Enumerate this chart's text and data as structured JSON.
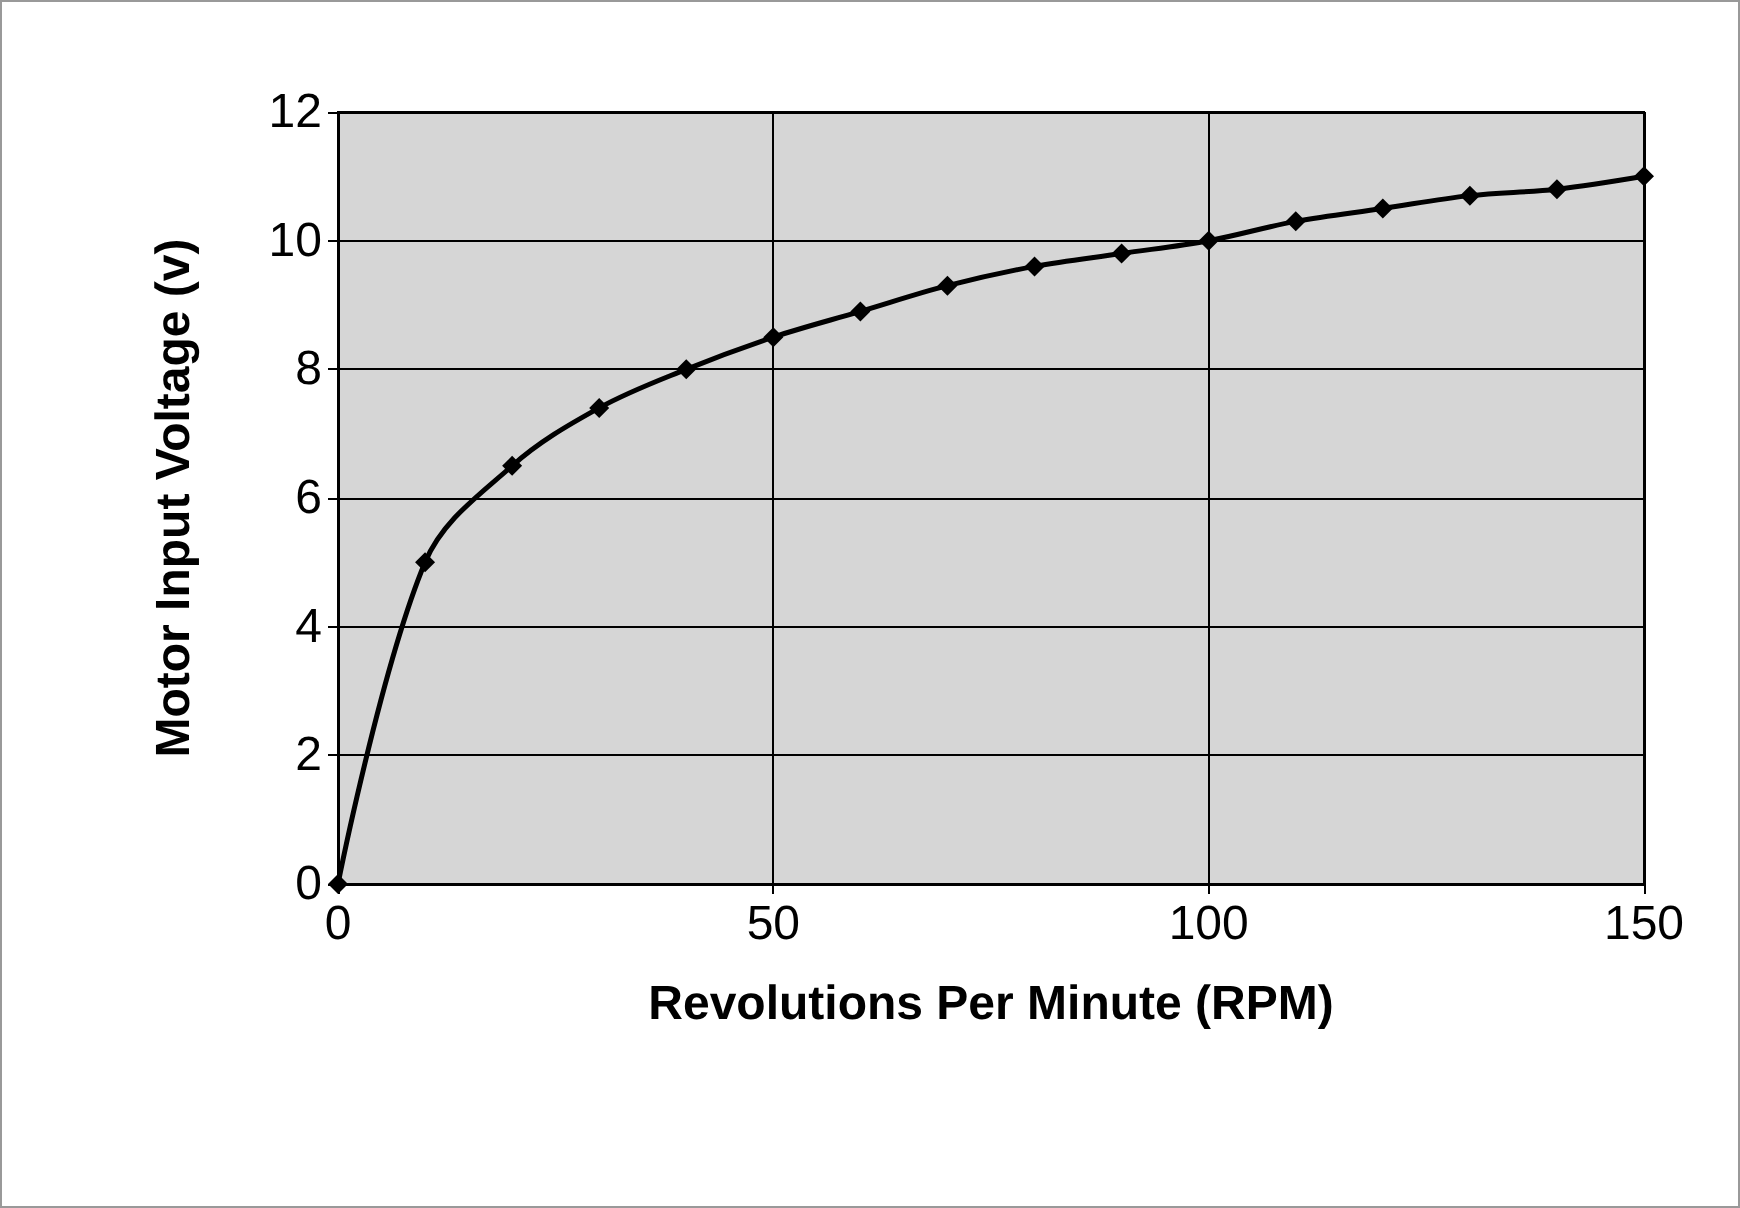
{
  "chart_data": {
    "type": "line",
    "xlabel": "Revolutions Per Minute (RPM)",
    "ylabel": "Motor Input Voltage (v)",
    "x": [
      0,
      10,
      20,
      30,
      40,
      50,
      60,
      70,
      80,
      90,
      100,
      110,
      120,
      130,
      140,
      150
    ],
    "series": [
      {
        "color": "#000000",
        "values": [
          0,
          5.0,
          6.5,
          7.4,
          8.0,
          8.5,
          8.9,
          9.3,
          9.6,
          9.8,
          10.0,
          10.3,
          10.5,
          10.7,
          10.8,
          11.0
        ]
      }
    ],
    "xlim": [
      0,
      150
    ],
    "xticks": [
      0,
      50,
      100,
      150
    ],
    "ylim": [
      0,
      12
    ],
    "yticks": [
      0,
      2,
      4,
      6,
      8,
      10,
      12
    ],
    "grid": true,
    "marker": "diamond",
    "line_style": "solid"
  }
}
